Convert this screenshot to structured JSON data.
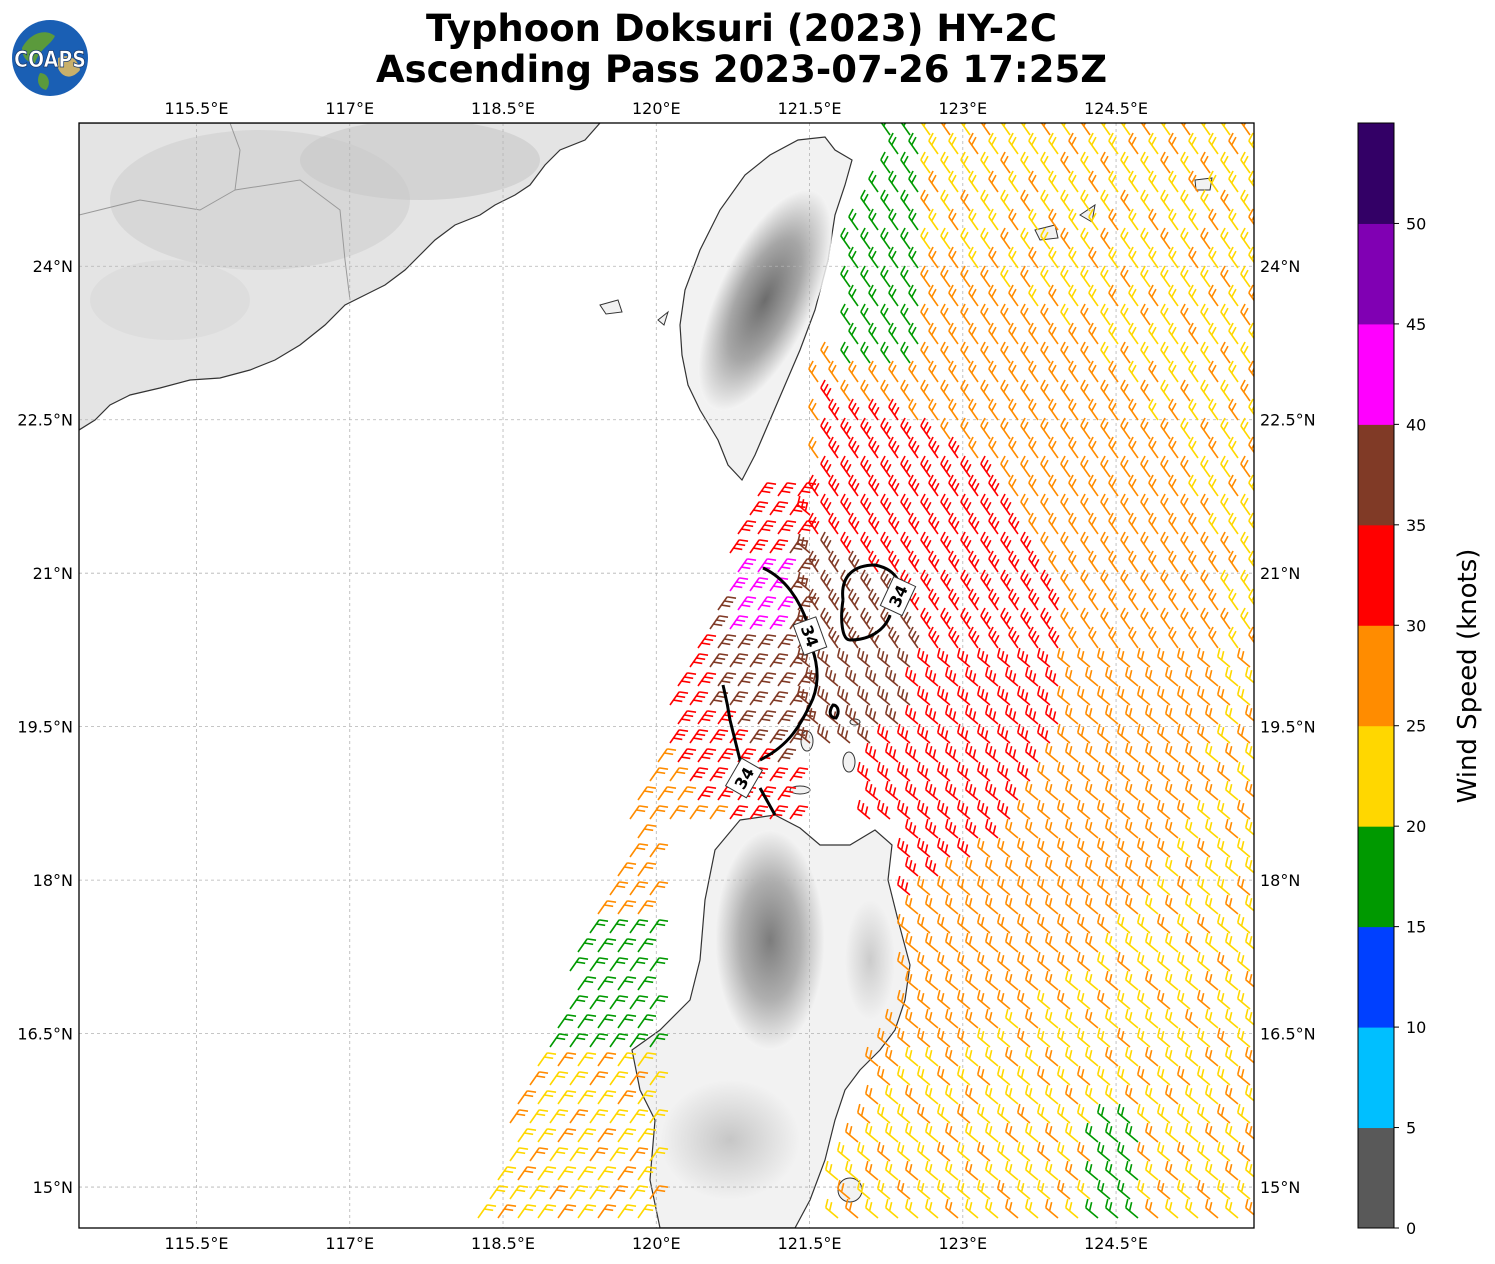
{
  "title": {
    "line1": "Typhoon Doksuri (2023) HY-2C",
    "line2": "Ascending Pass 2023-07-26 17:25Z"
  },
  "logo_text": "COAPS",
  "map": {
    "lon_ticks": [
      "115.5°E",
      "117°E",
      "118.5°E",
      "120°E",
      "121.5°E",
      "123°E",
      "124.5°E"
    ],
    "lat_ticks": [
      "24°N",
      "22.5°N",
      "21°N",
      "19.5°N",
      "18°N",
      "16.5°N",
      "15°N"
    ],
    "contour_labels": [
      "34",
      "34",
      "34"
    ],
    "lon_range": [
      114.35,
      125.85
    ],
    "lat_range": [
      14.6,
      25.4
    ]
  },
  "colorbar": {
    "label": "Wind Speed (knots)",
    "ticks": [
      "0",
      "5",
      "10",
      "15",
      "20",
      "25",
      "30",
      "35",
      "40",
      "45",
      "50"
    ],
    "colors": [
      "#595959",
      "#00bfff",
      "#0040ff",
      "#009900",
      "#ffd700",
      "#ff8c00",
      "#ff0000",
      "#803a26",
      "#ff00ff",
      "#8000b3",
      "#330066"
    ]
  },
  "wind_colors": {
    "calm": "#595959",
    "light": "#00bfff",
    "moderate": "#0040ff",
    "fresh": "#009900",
    "strong": "#ffd700",
    "gale": "#ff8c00",
    "storm": "#ff0000",
    "severe": "#803a26",
    "violent": "#ff00ff",
    "extreme": "#8000b3",
    "max": "#330066"
  }
}
